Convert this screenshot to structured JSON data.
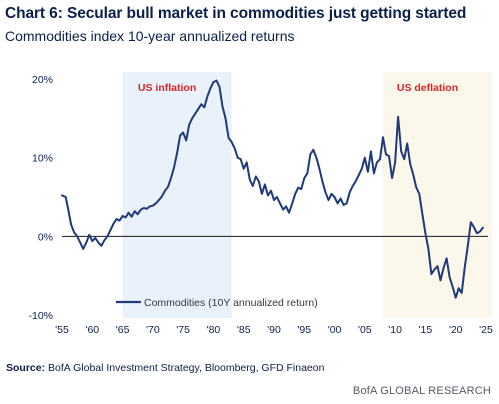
{
  "header": {
    "title": "Chart 6: Secular bull market in commodities just getting started",
    "subtitle": "Commodities index 10-year annualized returns"
  },
  "footer": {
    "source_label": "Source:",
    "source_text": "BofA Global Investment Strategy, Bloomberg, GFD Finaeon",
    "brand": "BofA GLOBAL RESEARCH"
  },
  "colors": {
    "line": "#1f3a7a",
    "inflation_shade": "#e9f1fb",
    "deflation_shade": "#fbf7ea",
    "annotation": "#d9262c",
    "axis_text": "#0b1f4a"
  },
  "chart_data": {
    "type": "line",
    "xlim": [
      1954.5,
      2026
    ],
    "ylim": [
      -10,
      20
    ],
    "x_ticks": [
      1955,
      1960,
      1965,
      1970,
      1975,
      1980,
      1985,
      1990,
      1995,
      2000,
      2005,
      2010,
      2015,
      2020,
      2025
    ],
    "x_tick_labels": [
      "'55",
      "'60",
      "'65",
      "'70",
      "'75",
      "'80",
      "'85",
      "'90",
      "'95",
      "'00",
      "'05",
      "'10",
      "'15",
      "'20",
      "'25"
    ],
    "y_ticks": [
      -10,
      0,
      10,
      20
    ],
    "y_tick_labels": [
      "-10%",
      "0%",
      "10%",
      "20%"
    ],
    "zero_line": true,
    "grid": false,
    "legend_position": "bottom-left",
    "shaded_regions": [
      {
        "label": "US inflation",
        "x_start": 1965,
        "x_end": 1983,
        "color": "#e9f1fb"
      },
      {
        "label": "US deflation",
        "x_start": 2008,
        "x_end": 2026,
        "color": "#fbf7ea"
      }
    ],
    "series": [
      {
        "name": "Commodities (10Y annualized return)",
        "color": "#1f3a7a",
        "x": [
          1955,
          1955.6,
          1956,
          1956.5,
          1957,
          1957.5,
          1958,
          1958.5,
          1959,
          1959.5,
          1960,
          1960.5,
          1961,
          1961.5,
          1962,
          1962.5,
          1963,
          1963.5,
          1964,
          1964.5,
          1965,
          1965.5,
          1966,
          1966.5,
          1967,
          1967.5,
          1968,
          1968.5,
          1969,
          1969.5,
          1970,
          1970.5,
          1971,
          1971.5,
          1972,
          1972.5,
          1973,
          1973.5,
          1974,
          1974.5,
          1975,
          1975.5,
          1976,
          1976.5,
          1977,
          1977.5,
          1978,
          1978.5,
          1979,
          1979.5,
          1980,
          1980.5,
          1981,
          1981.5,
          1982,
          1982.5,
          1983,
          1983.5,
          1984,
          1984.5,
          1985,
          1985.5,
          1986,
          1986.5,
          1987,
          1987.5,
          1988,
          1988.5,
          1989,
          1989.5,
          1990,
          1990.5,
          1991,
          1991.5,
          1992,
          1992.5,
          1993,
          1993.5,
          1994,
          1994.5,
          1995,
          1995.5,
          1996,
          1996.5,
          1997,
          1997.5,
          1998,
          1998.5,
          1999,
          1999.5,
          2000,
          2000.5,
          2001,
          2001.5,
          2002,
          2002.5,
          2003,
          2003.5,
          2004,
          2004.5,
          2005,
          2005.5,
          2006,
          2006.5,
          2007,
          2007.5,
          2008,
          2008.5,
          2009,
          2009.5,
          2010,
          2010.5,
          2011,
          2011.5,
          2012,
          2012.5,
          2013,
          2013.5,
          2014,
          2014.5,
          2015,
          2015.5,
          2016,
          2016.5,
          2017,
          2017.5,
          2018,
          2018.5,
          2019,
          2019.5,
          2020,
          2020.5,
          2021,
          2021.5,
          2022,
          2022.5,
          2023,
          2023.5,
          2024,
          2024.5
        ],
        "y": [
          5.2,
          5.0,
          3.5,
          1.5,
          0.5,
          0.0,
          -0.8,
          -1.6,
          -0.8,
          0.2,
          -0.6,
          -0.2,
          -0.8,
          -1.2,
          -0.5,
          0.0,
          0.8,
          1.6,
          2.2,
          2.0,
          2.6,
          2.4,
          3.0,
          2.5,
          3.2,
          2.8,
          3.4,
          3.6,
          3.5,
          3.8,
          3.9,
          4.2,
          4.6,
          5.1,
          5.8,
          6.3,
          7.4,
          8.8,
          10.6,
          12.8,
          13.2,
          12.2,
          14.2,
          15.0,
          15.6,
          16.2,
          16.8,
          16.4,
          17.8,
          18.8,
          19.6,
          19.8,
          19.0,
          16.5,
          15.0,
          12.5,
          12.0,
          11.2,
          10.0,
          9.8,
          8.6,
          9.4,
          7.2,
          6.4,
          7.6,
          7.0,
          5.4,
          6.6,
          5.2,
          5.8,
          4.6,
          5.0,
          4.2,
          3.4,
          3.8,
          3.0,
          4.2,
          5.4,
          6.2,
          6.0,
          7.4,
          8.0,
          10.4,
          11.0,
          10.0,
          8.6,
          7.0,
          5.6,
          4.6,
          5.4,
          5.0,
          4.2,
          4.8,
          4.0,
          4.2,
          5.6,
          6.4,
          7.0,
          7.8,
          8.6,
          10.0,
          8.2,
          10.8,
          8.0,
          9.4,
          9.8,
          12.6,
          10.4,
          10.2,
          7.4,
          9.4,
          15.2,
          10.8,
          9.8,
          11.8,
          9.2,
          7.8,
          6.2,
          5.4,
          2.8,
          0.4,
          -1.6,
          -4.8,
          -4.2,
          -3.8,
          -5.6,
          -4.0,
          -2.8,
          -5.2,
          -6.4,
          -7.8,
          -6.6,
          -7.2,
          -4.0,
          -1.2,
          1.8,
          1.2,
          0.4,
          0.6,
          1.1
        ]
      }
    ]
  }
}
